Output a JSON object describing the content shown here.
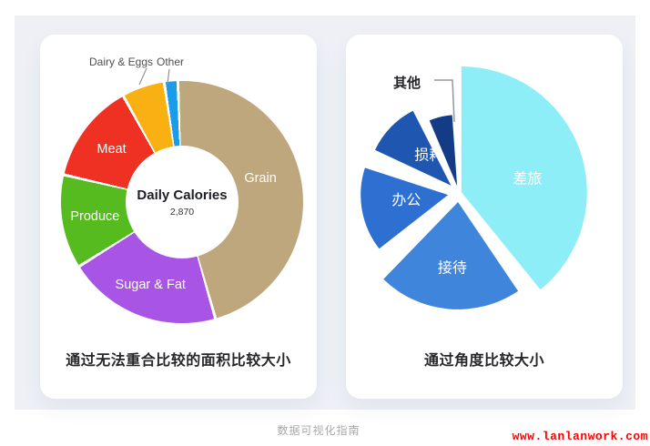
{
  "page": {
    "background_color": "#eef0f6",
    "footer_title": "数据可视化指南",
    "watermark": "www.lanlanwork.com",
    "watermark_color": "#ff0000"
  },
  "chart_data": [
    {
      "type": "pie",
      "variant": "donut",
      "caption": "通过无法重合比较的面积比较大小",
      "center_label": "Daily Calories",
      "center_value": "2,870",
      "legend_position": "labels-on-slices",
      "segments": [
        {
          "label": "Grain",
          "percent": 46.1,
          "start": 0,
          "end": 166,
          "color": "#bea77c",
          "label_in": true,
          "label_angle": 75,
          "label_r": 90
        },
        {
          "label": "Sugar & Fat",
          "percent": 20.6,
          "start": 166,
          "end": 240,
          "color": "#a855e6",
          "label_in": true
        },
        {
          "label": "Produce",
          "percent": 12.5,
          "start": 240,
          "end": 285,
          "color": "#56bb1f",
          "label_in": true
        },
        {
          "label": "Meat",
          "percent": 13.3,
          "start": 285,
          "end": 333,
          "color": "#ee3123",
          "label_in": true
        },
        {
          "label": "Dairy & Eggs",
          "percent": 5.7,
          "start": 333,
          "end": 353.5,
          "color": "#f9b013",
          "label_in": false
        },
        {
          "label": "Other",
          "percent": 1.8,
          "start": 353.5,
          "end": 360,
          "color": "#1b9ceb",
          "label_in": false
        }
      ]
    },
    {
      "type": "pie",
      "variant": "exploded",
      "caption": "通过角度比较大小",
      "legend_position": "labels-on-slices",
      "slices": [
        {
          "label": "差旅",
          "percent": 39,
          "start": 0,
          "end": 141,
          "radius": 138,
          "explode": 3,
          "color": "#8deef8",
          "label_in": true,
          "label_angle": 78,
          "label_r": 74
        },
        {
          "label": "接待",
          "percent": 22,
          "start": 146,
          "end": 224,
          "radius": 118,
          "explode": 10,
          "color": "#3f85dc",
          "label_in": true,
          "label_angle": 185,
          "label_r": 72
        },
        {
          "label": "办公",
          "percent": 17,
          "start": 232,
          "end": 288,
          "radius": 96,
          "explode": 12,
          "color": "#2e6fd2",
          "label_in": true,
          "label_angle": 264,
          "label_r": 46
        },
        {
          "label": "损耗",
          "percent": 11,
          "start": 295,
          "end": 333,
          "radius": 92,
          "explode": 12,
          "color": "#1e56b0",
          "label_in": true,
          "label_angle": 325,
          "label_r": 42
        },
        {
          "label": "其他",
          "percent": 5,
          "start": 337,
          "end": 356,
          "radius": 78,
          "explode": 8,
          "color": "#143c86",
          "label_in": false
        }
      ]
    }
  ]
}
